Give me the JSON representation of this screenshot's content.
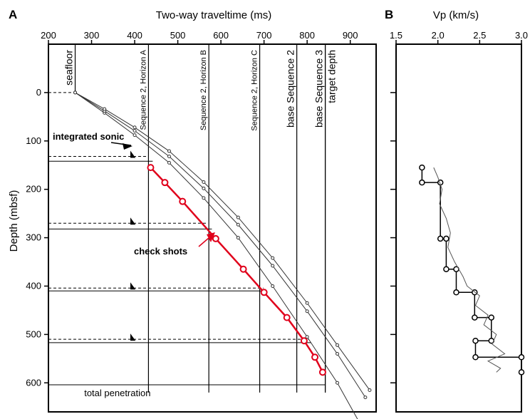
{
  "chart_data": [
    {
      "type": "line",
      "panel_label": "A",
      "xlabel": "Two-way traveltime (ms)",
      "ylabel": "Depth (mbsf)",
      "xlim": [
        200,
        960
      ],
      "ylim": [
        -100,
        660
      ],
      "x_ticks": [
        200,
        300,
        400,
        500,
        600,
        700,
        800,
        900
      ],
      "y_ticks": [
        0,
        100,
        200,
        300,
        400,
        500,
        600
      ],
      "vertical_markers": [
        {
          "x": 262,
          "label": "seafloor"
        },
        {
          "x": 432,
          "label": "Sequence 2, Horizon A"
        },
        {
          "x": 572,
          "label": "Sequence 2, Horizon B"
        },
        {
          "x": 690,
          "label": "Sequence 2, Horizon C"
        },
        {
          "x": 776,
          "label": "base Sequence 2"
        },
        {
          "x": 842,
          "label": "base Sequence 3"
        },
        {
          "x": 842,
          "label": "target depth"
        }
      ],
      "horizontal_markers": [
        {
          "depth": 0,
          "style": "dashed"
        },
        {
          "depth": 132,
          "style": "dashed"
        },
        {
          "depth": 142,
          "style": "solid"
        },
        {
          "depth": 270,
          "style": "dashed"
        },
        {
          "depth": 282,
          "style": "solid"
        },
        {
          "depth": 404,
          "style": "dashed"
        },
        {
          "depth": 410,
          "style": "solid"
        },
        {
          "depth": 510,
          "style": "dashed"
        },
        {
          "depth": 517,
          "style": "solid"
        },
        {
          "depth": 604,
          "style": "solid",
          "label": "total penetration"
        }
      ],
      "series": [
        {
          "style": "check shots (red, circles)",
          "color": "#e0001b",
          "x": [
            437,
            470,
            511,
            588,
            652,
            700,
            753,
            793,
            818,
            836
          ],
          "y": [
            155,
            186,
            225,
            302,
            365,
            413,
            465,
            513,
            547,
            578
          ]
        },
        {
          "style": "integrated sonic (steep)",
          "x": [
            262,
            330,
            400,
            480,
            560,
            640,
            720,
            800,
            870,
            920
          ],
          "y": [
            0,
            42,
            88,
            145,
            218,
            300,
            400,
            505,
            600,
            680
          ]
        },
        {
          "style": "integrated sonic (mid)",
          "x": [
            262,
            330,
            400,
            480,
            560,
            640,
            720,
            800,
            870,
            935
          ],
          "y": [
            0,
            38,
            79,
            132,
            198,
            273,
            358,
            452,
            540,
            630
          ]
        },
        {
          "style": "integrated sonic (shallow)",
          "x": [
            262,
            330,
            400,
            480,
            560,
            640,
            720,
            800,
            870,
            945
          ],
          "y": [
            0,
            34,
            72,
            121,
            185,
            258,
            342,
            435,
            522,
            615
          ]
        }
      ],
      "annotations": [
        "integrated sonic",
        "check shots",
        "total penetration"
      ],
      "label_color": "#e0001b"
    },
    {
      "type": "line",
      "panel_label": "B",
      "xlabel": "Vp (km/s)",
      "xlim": [
        1.5,
        3.0
      ],
      "x_ticks": [
        1.5,
        2.0,
        2.5,
        3.0
      ],
      "ylim": [
        -100,
        660
      ],
      "series": [
        {
          "style": "interval velocity (step, circles)",
          "x": [
            1.81,
            1.81,
            2.03,
            2.03,
            2.1,
            2.1,
            2.22,
            2.22,
            2.44,
            2.44,
            2.64,
            2.64,
            2.45,
            2.45,
            3.0,
            3.0
          ],
          "y": [
            155,
            186,
            186,
            302,
            302,
            365,
            365,
            413,
            413,
            465,
            465,
            513,
            513,
            547,
            547,
            578
          ]
        },
        {
          "style": "sonic log (gray, noisy)",
          "color": "#555555",
          "x": [
            1.95,
            2.0,
            2.05,
            2.02,
            2.1,
            2.15,
            2.12,
            2.2,
            2.3,
            2.35,
            2.5,
            2.45,
            2.6,
            2.55,
            2.7,
            2.65,
            2.8,
            2.6,
            2.75,
            2.7
          ],
          "y": [
            155,
            175,
            200,
            230,
            260,
            290,
            320,
            350,
            380,
            400,
            420,
            440,
            460,
            480,
            500,
            520,
            540,
            555,
            570,
            578
          ]
        }
      ]
    }
  ]
}
